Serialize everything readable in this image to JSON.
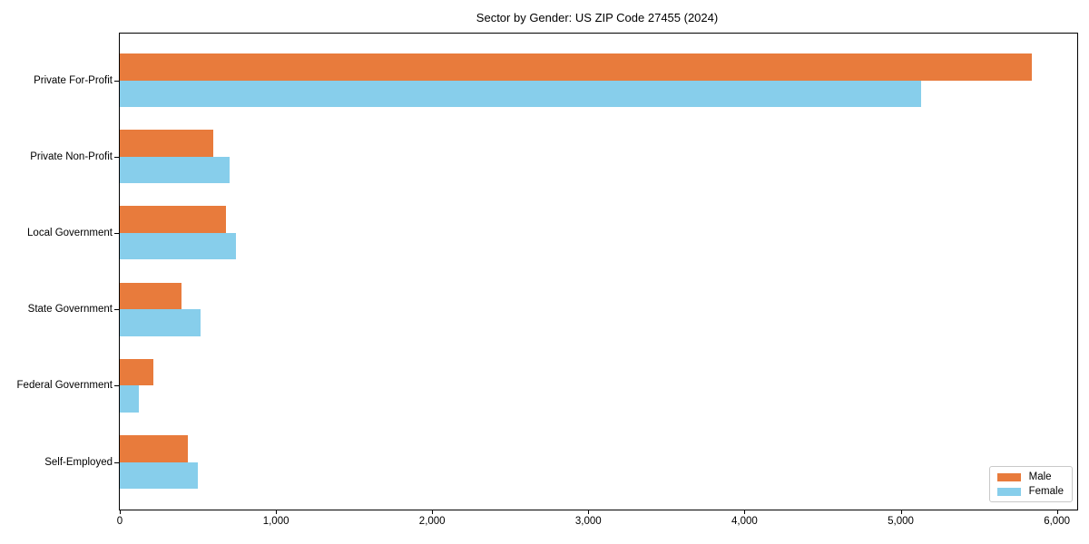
{
  "title": "Sector by Gender: US ZIP Code 27455 (2024)",
  "colors": {
    "male": "#e87b3c",
    "female": "#87ceeb",
    "axis": "#000000",
    "legend_border": "#c9c9c9",
    "background": "#ffffff"
  },
  "chart_data": {
    "type": "bar",
    "orientation": "horizontal",
    "title": "Sector by Gender: US ZIP Code 27455 (2024)",
    "xlabel": "",
    "ylabel": "",
    "categories": [
      "Private For-Profit",
      "Private Non-Profit",
      "Local Government",
      "State Government",
      "Federal Government",
      "Self-Employed"
    ],
    "series": [
      {
        "name": "Male",
        "color": "#e87b3c",
        "values": [
          5840,
          600,
          680,
          395,
          215,
          435
        ]
      },
      {
        "name": "Female",
        "color": "#87ceeb",
        "values": [
          5130,
          700,
          745,
          515,
          120,
          500
        ]
      }
    ],
    "xlim": [
      0,
      6130
    ],
    "xticks": [
      0,
      1000,
      2000,
      3000,
      4000,
      5000,
      6000
    ],
    "xtick_labels": [
      "0",
      "1,000",
      "2,000",
      "3,000",
      "4,000",
      "5,000",
      "6,000"
    ],
    "legend": {
      "position": "lower right",
      "entries": [
        "Male",
        "Female"
      ]
    },
    "grid": false
  }
}
